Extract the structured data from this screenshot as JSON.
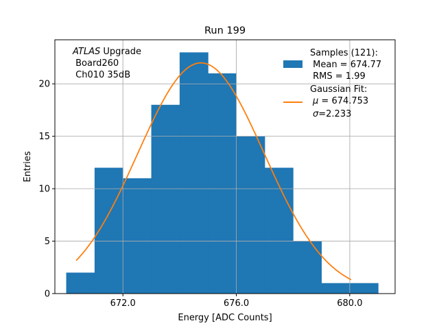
{
  "chart_data": {
    "type": "bar",
    "title": "Run 199",
    "xlabel": "Energy [ADC Counts]",
    "ylabel": "Entries",
    "xlim": [
      669.6,
      681.6
    ],
    "ylim": [
      0,
      24.2
    ],
    "grid": true,
    "bins": [
      {
        "x0": 670,
        "x1": 671,
        "count": 2
      },
      {
        "x0": 671,
        "x1": 672,
        "count": 12
      },
      {
        "x0": 672,
        "x1": 673,
        "count": 11
      },
      {
        "x0": 673,
        "x1": 674,
        "count": 18
      },
      {
        "x0": 674,
        "x1": 675,
        "count": 23
      },
      {
        "x0": 675,
        "x1": 676,
        "count": 21
      },
      {
        "x0": 676,
        "x1": 677,
        "count": 15
      },
      {
        "x0": 677,
        "x1": 678,
        "count": 12
      },
      {
        "x0": 678,
        "x1": 679,
        "count": 5
      },
      {
        "x0": 679,
        "x1": 680,
        "count": 1
      },
      {
        "x0": 680,
        "x1": 681,
        "count": 1
      }
    ],
    "fit": {
      "type": "gaussian",
      "amplitude": 22,
      "mu": 674.753,
      "sigma": 2.233,
      "x_range": [
        670.35,
        680.05
      ]
    },
    "x_ticks": [
      672,
      676,
      680
    ],
    "x_tick_labels": [
      "672.0",
      "676.0",
      "680.0"
    ],
    "y_ticks": [
      0,
      5,
      10,
      15,
      20
    ],
    "y_tick_labels": [
      "0",
      "5",
      "10",
      "15",
      "20"
    ],
    "colors": {
      "histogram": "#1f77b4",
      "fit": "#ff7f0e",
      "grid": "#b0b0b0"
    },
    "annotation": {
      "experiment_italic": "ATLAS",
      "experiment_suffix": " Upgrade",
      "line2": " Board260",
      "line3": " Ch010 35dB"
    },
    "legend": {
      "placement": "top-right",
      "histogram_label": "Samples (121):",
      "histogram_mean": " Mean = 674.77",
      "histogram_rms": " RMS = 1.99",
      "fit_label": "Gaussian Fit:",
      "fit_mu_symbol": "μ",
      "fit_mu_value": " = 674.753",
      "fit_sigma_symbol": "σ",
      "fit_sigma_value": "=2.233"
    }
  }
}
